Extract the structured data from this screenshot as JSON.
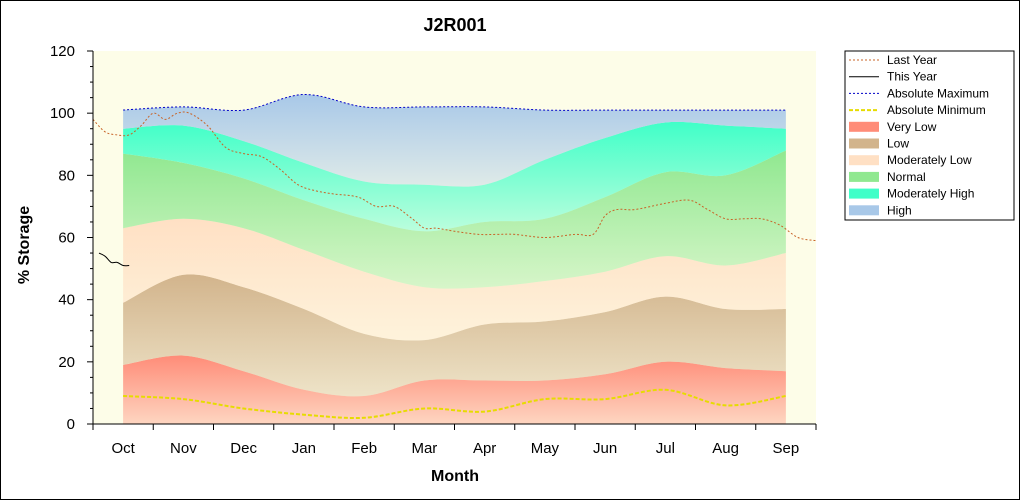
{
  "chart_data": {
    "type": "area",
    "title": "J2R001",
    "xlabel": "Month",
    "ylabel": "% Storage",
    "ylim": [
      0,
      120
    ],
    "yticks": [
      0,
      20,
      40,
      60,
      80,
      100,
      120
    ],
    "categories": [
      "Oct",
      "Nov",
      "Dec",
      "Jan",
      "Feb",
      "Mar",
      "Apr",
      "May",
      "Jun",
      "Jul",
      "Aug",
      "Sep"
    ],
    "grid": false,
    "legend_position": "right",
    "bands": [
      {
        "name": "Very Low",
        "color": "#ff8c78",
        "lower": [
          0,
          0,
          0,
          0,
          0,
          0,
          0,
          0,
          0,
          0,
          0,
          0
        ],
        "upper": [
          19,
          22,
          17,
          11,
          9,
          14,
          14,
          14,
          16,
          20,
          18,
          17
        ]
      },
      {
        "name": "Low",
        "color": "#d2b48c",
        "lower": [
          19,
          22,
          17,
          11,
          9,
          14,
          14,
          14,
          16,
          20,
          18,
          17
        ],
        "upper": [
          39,
          48,
          44,
          37,
          29,
          27,
          32,
          33,
          36,
          41,
          37,
          37
        ]
      },
      {
        "name": "Moderately Low",
        "color": "#ffe0c4",
        "lower": [
          39,
          48,
          44,
          37,
          29,
          27,
          32,
          33,
          36,
          41,
          37,
          37
        ],
        "upper": [
          63,
          66,
          63,
          56,
          49,
          44,
          44,
          46,
          49,
          54,
          51,
          55
        ]
      },
      {
        "name": "Normal",
        "color": "#90e890",
        "lower": [
          63,
          66,
          63,
          56,
          49,
          44,
          44,
          46,
          49,
          54,
          51,
          55
        ],
        "upper": [
          87,
          84,
          79,
          72,
          66,
          62,
          65,
          66,
          73,
          81,
          80,
          88
        ]
      },
      {
        "name": "Moderately High",
        "color": "#40ffc8",
        "lower": [
          87,
          84,
          79,
          72,
          66,
          62,
          65,
          66,
          73,
          81,
          80,
          88
        ],
        "upper": [
          95,
          96,
          91,
          84,
          78,
          77,
          77,
          85,
          92,
          97,
          96,
          95
        ]
      },
      {
        "name": "High",
        "color": "#a8c8e8",
        "lower": [
          95,
          96,
          91,
          84,
          78,
          77,
          77,
          85,
          92,
          97,
          96,
          95
        ],
        "upper": [
          101,
          102,
          101,
          106,
          102,
          102,
          102,
          101,
          101,
          101,
          101,
          101
        ]
      }
    ],
    "series": [
      {
        "name": "Last Year",
        "color": "#c86428",
        "style": "dotted",
        "x": [
          -0.5,
          -0.3,
          -0.1,
          0.1,
          0.3,
          0.5,
          0.7,
          0.9,
          1.1,
          1.4,
          1.7,
          2.0,
          2.3,
          2.6,
          2.9,
          3.2,
          3.5,
          3.9,
          4.2,
          4.5,
          4.8,
          5.0,
          5.2,
          5.5,
          5.9,
          6.2,
          6.5,
          7.0,
          7.5,
          7.8,
          8.0,
          8.2,
          8.5,
          9.0,
          9.4,
          9.7,
          10.0,
          10.3,
          10.6,
          10.9,
          11.2,
          11.5
        ],
        "y": [
          98,
          94,
          93,
          93,
          96,
          100,
          98,
          100,
          100,
          96,
          89,
          87,
          86,
          82,
          77,
          75,
          74,
          73,
          70,
          70,
          66,
          63,
          63,
          62,
          61,
          61,
          61,
          60,
          61,
          61,
          67,
          69,
          69,
          71,
          72,
          69,
          66,
          66,
          66,
          64,
          60,
          59
        ]
      },
      {
        "name": "This Year",
        "color": "#000000",
        "style": "solid",
        "x": [
          -0.4,
          -0.3,
          -0.2,
          -0.1,
          0.0,
          0.1
        ],
        "y": [
          55,
          54,
          52,
          52,
          51,
          51
        ]
      },
      {
        "name": "Absolute Maximum",
        "color": "#0000c8",
        "style": "dotted",
        "x": [
          0,
          1,
          2,
          3,
          4,
          5,
          6,
          7,
          8,
          9,
          10,
          11
        ],
        "y": [
          101,
          102,
          101,
          106,
          102,
          102,
          102,
          101,
          101,
          101,
          101,
          101
        ]
      },
      {
        "name": "Absolute Minimum",
        "color": "#e6dc00",
        "style": "dashed",
        "x": [
          0,
          1,
          2,
          3,
          4,
          5,
          6,
          7,
          8,
          9,
          10,
          11
        ],
        "y": [
          9,
          8,
          5,
          3,
          2,
          5,
          4,
          8,
          8,
          11,
          6,
          9
        ]
      }
    ],
    "legend": [
      {
        "label": "Last Year",
        "kind": "line",
        "color": "#c86428",
        "dash": "2,2"
      },
      {
        "label": "This Year",
        "kind": "line",
        "color": "#000000",
        "dash": ""
      },
      {
        "label": "Absolute Maximum",
        "kind": "line",
        "color": "#0000c8",
        "dash": "2,2"
      },
      {
        "label": "Absolute Minimum",
        "kind": "line",
        "color": "#e6dc00",
        "dash": "4,2"
      },
      {
        "label": "Very Low",
        "kind": "fill",
        "color": "#ff8c78"
      },
      {
        "label": "Low",
        "kind": "fill",
        "color": "#d2b48c"
      },
      {
        "label": "Moderately Low",
        "kind": "fill",
        "color": "#ffe0c4"
      },
      {
        "label": "Normal",
        "kind": "fill",
        "color": "#90e890"
      },
      {
        "label": "Moderately High",
        "kind": "fill",
        "color": "#40ffc8"
      },
      {
        "label": "High",
        "kind": "fill",
        "color": "#a8c8e8"
      }
    ],
    "colors": {
      "plot_background": "#fdfde8",
      "frame": "#000000"
    }
  }
}
